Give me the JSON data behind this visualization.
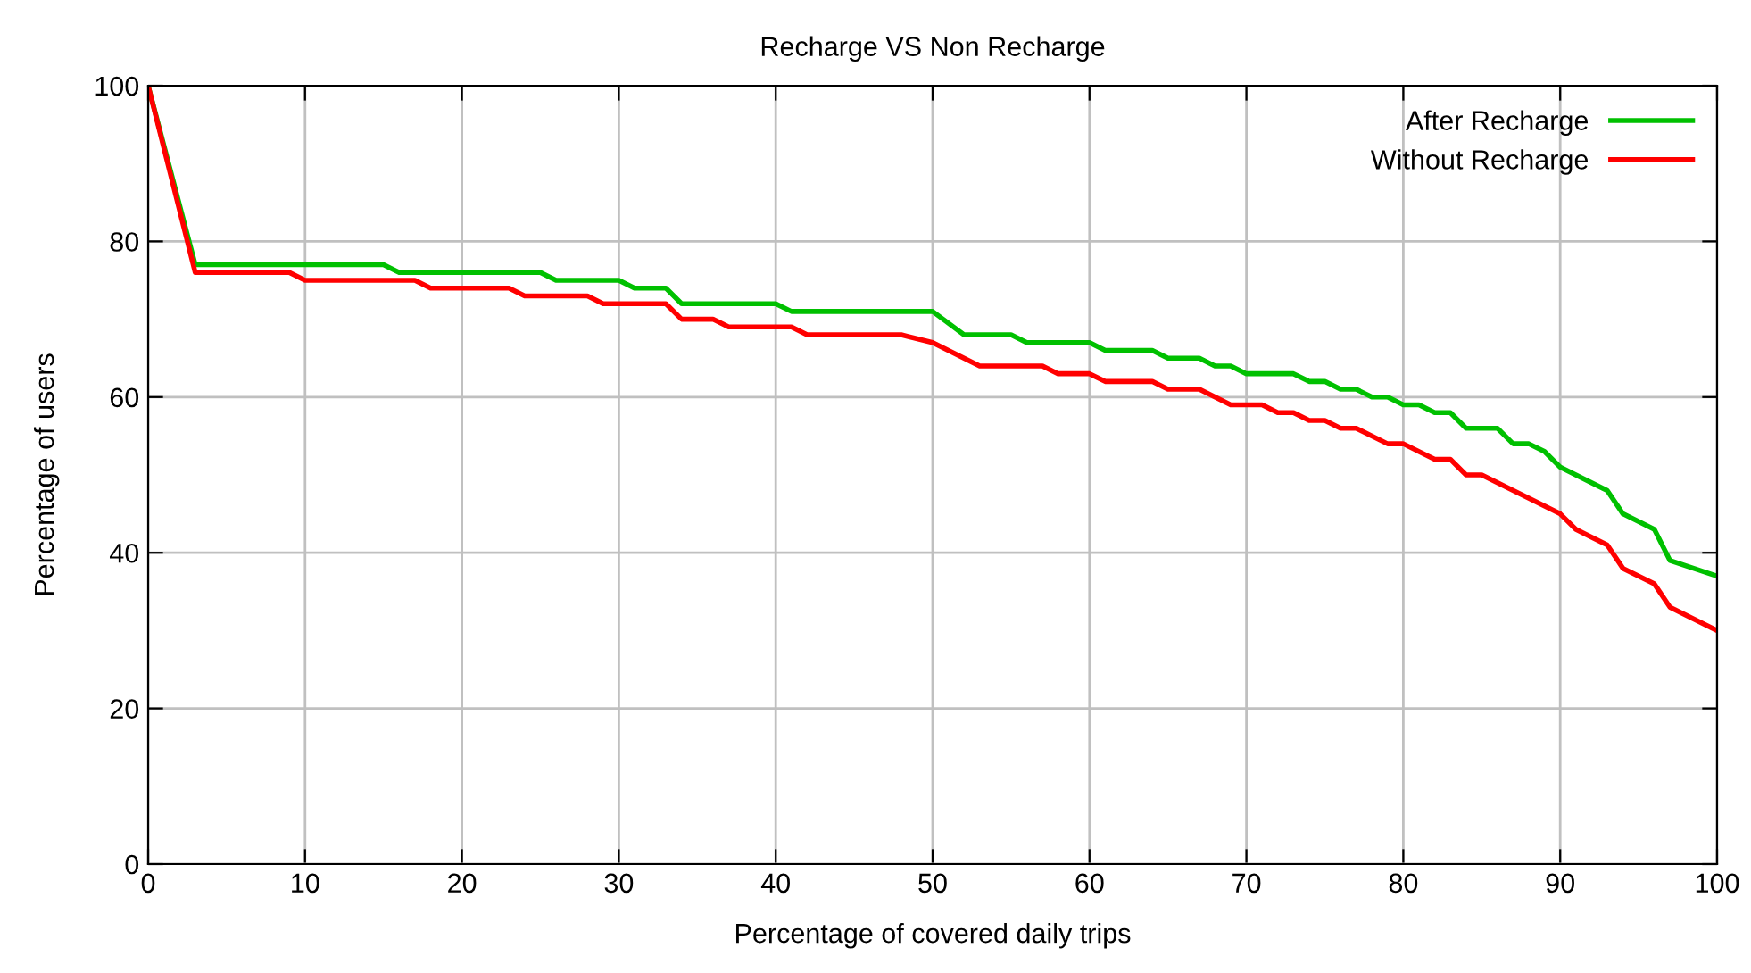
{
  "chart_data": {
    "type": "line",
    "title": "Recharge VS Non Recharge",
    "xlabel": "Percentage of covered daily trips",
    "ylabel": "Percentage of users",
    "xlim": [
      0,
      100
    ],
    "ylim": [
      0,
      100
    ],
    "xticks": [
      0,
      10,
      20,
      30,
      40,
      50,
      60,
      70,
      80,
      90,
      100
    ],
    "yticks": [
      0,
      20,
      40,
      60,
      80,
      100
    ],
    "grid": true,
    "legend": "top right",
    "marker": "none",
    "line_style": "solid",
    "series": [
      {
        "name": "After Recharge",
        "color": "#00c000",
        "x": [
          0,
          3,
          15,
          16,
          25,
          26,
          30,
          31,
          33,
          34,
          40,
          41,
          50,
          52,
          55,
          56,
          60,
          61,
          64,
          65,
          67,
          68,
          69,
          70,
          73,
          74,
          75,
          76,
          77,
          78,
          79,
          80,
          81,
          82,
          83,
          84,
          86,
          87,
          88,
          89,
          90,
          93,
          94,
          96,
          97,
          100
        ],
        "values": [
          100,
          77,
          77,
          76,
          76,
          75,
          75,
          74,
          74,
          72,
          72,
          71,
          71,
          68,
          68,
          67,
          67,
          66,
          66,
          65,
          65,
          64,
          64,
          63,
          63,
          62,
          62,
          61,
          61,
          60,
          60,
          59,
          59,
          58,
          58,
          56,
          56,
          54,
          54,
          53,
          51,
          48,
          45,
          43,
          39,
          37
        ]
      },
      {
        "name": "Without Recharge",
        "color": "#ff0000",
        "x": [
          0,
          3,
          9,
          10,
          17,
          18,
          23,
          24,
          28,
          29,
          33,
          34,
          36,
          37,
          41,
          42,
          48,
          50,
          53,
          57,
          58,
          60,
          61,
          64,
          65,
          67,
          69,
          71,
          72,
          73,
          74,
          75,
          76,
          77,
          79,
          80,
          82,
          83,
          84,
          85,
          90,
          91,
          93,
          94,
          96,
          97,
          100
        ],
        "values": [
          100,
          76,
          76,
          75,
          75,
          74,
          74,
          73,
          73,
          72,
          72,
          70,
          70,
          69,
          69,
          68,
          68,
          67,
          64,
          64,
          63,
          63,
          62,
          62,
          61,
          61,
          59,
          59,
          58,
          58,
          57,
          57,
          56,
          56,
          54,
          54,
          52,
          52,
          50,
          50,
          45,
          43,
          41,
          38,
          36,
          33,
          30
        ]
      }
    ]
  }
}
